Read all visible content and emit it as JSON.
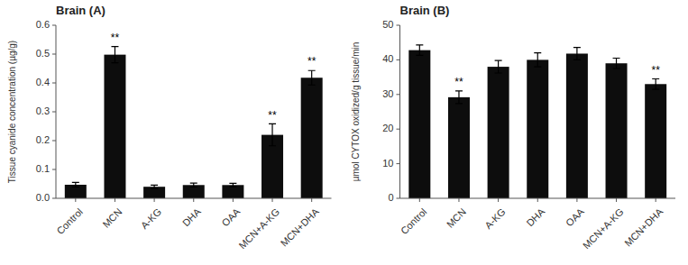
{
  "chart_data": [
    {
      "type": "bar",
      "title": "Brain (A)",
      "categories": [
        "Control",
        "MCN",
        "A-KG",
        "DHA",
        "OAA",
        "MCN+A-KG",
        "MCN+DHA"
      ],
      "values": [
        0.047,
        0.498,
        0.04,
        0.046,
        0.046,
        0.22,
        0.418
      ],
      "errors": [
        0.008,
        0.028,
        0.006,
        0.007,
        0.006,
        0.038,
        0.025
      ],
      "annotations": [
        {
          "category": "MCN",
          "text": "**"
        },
        {
          "category": "MCN+A-KG",
          "text": "**"
        },
        {
          "category": "MCN+DHA",
          "text": "**"
        }
      ],
      "ylabel": "Tissue cyanide concentration (µg/g)",
      "ylim": [
        0,
        0.6
      ],
      "yticks": [
        {
          "value": 0.0,
          "label": "0.0"
        },
        0.1,
        0.2,
        0.3,
        0.4,
        0.5,
        0.6
      ],
      "color": "#0d0d0d",
      "grid": false
    },
    {
      "type": "bar",
      "title": "Brain (B)",
      "categories": [
        "Control",
        "MCN",
        "A-KG",
        "DHA",
        "OAA",
        "MCN+A-KG",
        "MCN+DHA"
      ],
      "values": [
        42.8,
        29.2,
        38.0,
        40.0,
        41.8,
        39.0,
        33.0
      ],
      "errors": [
        1.5,
        1.8,
        1.8,
        2.0,
        1.8,
        1.5,
        1.5
      ],
      "annotations": [
        {
          "category": "MCN",
          "text": "**"
        },
        {
          "category": "MCN+DHA",
          "text": "**"
        }
      ],
      "ylabel": "µmol CYTOX oxidized/g tissue/min",
      "ylim": [
        0,
        50
      ],
      "yticks": [
        0,
        10,
        20,
        30,
        40,
        50
      ],
      "color": "#0d0d0d",
      "grid": false
    }
  ]
}
